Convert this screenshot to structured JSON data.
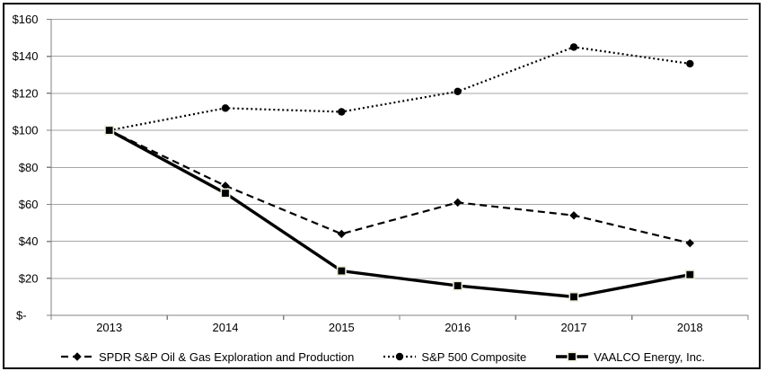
{
  "chart_data": {
    "type": "line",
    "title": "",
    "categories": [
      "2013",
      "2014",
      "2015",
      "2016",
      "2017",
      "2018"
    ],
    "series": [
      {
        "name": "SPDR S&P Oil & Gas Exploration and Production",
        "values": [
          100,
          70,
          44,
          61,
          54,
          39
        ],
        "line_style": "dashed",
        "marker": "diamond",
        "color": "#000000"
      },
      {
        "name": "S&P 500 Composite",
        "values": [
          100,
          112,
          110,
          121,
          145,
          136
        ],
        "line_style": "dotted",
        "marker": "circle",
        "color": "#000000"
      },
      {
        "name": "VAALCO Energy, Inc.",
        "values": [
          100,
          66,
          24,
          16,
          10,
          22
        ],
        "line_style": "solid",
        "marker": "square",
        "color": "#000000",
        "marker_edge_color": "#eaf0da"
      }
    ],
    "x_axis": {
      "label": "",
      "tick_labels": [
        "2013",
        "2014",
        "2015",
        "2016",
        "2017",
        "2018"
      ]
    },
    "y_axis": {
      "label": "",
      "min": 0,
      "max": 160,
      "step": 20,
      "tick_labels": [
        "$-",
        "$20",
        "$40",
        "$60",
        "$80",
        "$100",
        "$120",
        "$140",
        "$160"
      ]
    },
    "grid": true,
    "legend_position": "bottom",
    "style": {
      "background": "#ffffff",
      "border_color": "#000000",
      "gridline_color": "#a6a6a6",
      "axis_color": "#808080",
      "text_color": "#000000"
    }
  }
}
